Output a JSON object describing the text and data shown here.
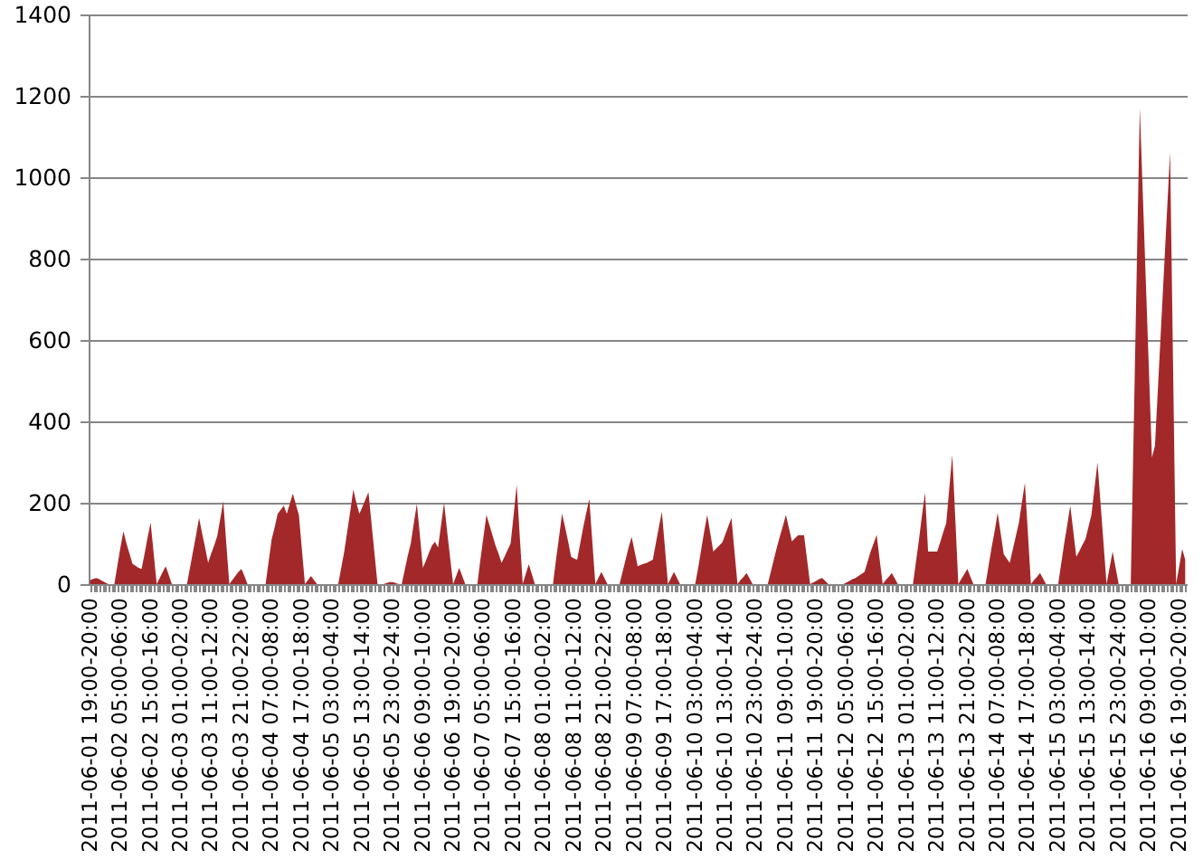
{
  "chart_data": {
    "type": "area",
    "color": "#a3282a",
    "categories": [
      "2011-06-01 19:00-20:00",
      null,
      null,
      null,
      null,
      null,
      null,
      null,
      null,
      null,
      "2011-06-02 05:00-06:00",
      null,
      null,
      null,
      null,
      null,
      null,
      null,
      null,
      null,
      "2011-06-02 15:00-16:00",
      null,
      null,
      null,
      null,
      null,
      null,
      null,
      null,
      null,
      "2011-06-03 01:00-02:00",
      null,
      null,
      null,
      null,
      null,
      null,
      null,
      null,
      null,
      "2011-06-03 11:00-12:00",
      null,
      null,
      null,
      null,
      null,
      null,
      null,
      null,
      null,
      "2011-06-03 21:00-22:00",
      null,
      null,
      null,
      null,
      null,
      null,
      null,
      null,
      null,
      "2011-06-04 07:00-08:00",
      null,
      null,
      null,
      null,
      null,
      null,
      null,
      null,
      null,
      "2011-06-04 17:00-18:00",
      null,
      null,
      null,
      null,
      null,
      null,
      null,
      null,
      null,
      "2011-06-05 03:00-04:00",
      null,
      null,
      null,
      null,
      null,
      null,
      null,
      null,
      null,
      "2011-06-05 13:00-14:00",
      null,
      null,
      null,
      null,
      null,
      null,
      null,
      null,
      null,
      "2011-06-05 23:00-24:00",
      null,
      null,
      null,
      null,
      null,
      null,
      null,
      null,
      null,
      "2011-06-06 09:00-10:00",
      null,
      null,
      null,
      null,
      null,
      null,
      null,
      null,
      null,
      "2011-06-06 19:00-20:00",
      null,
      null,
      null,
      null,
      null,
      null,
      null,
      null,
      null,
      "2011-06-07 05:00-06:00",
      null,
      null,
      null,
      null,
      null,
      null,
      null,
      null,
      null,
      "2011-06-07 15:00-16:00",
      null,
      null,
      null,
      null,
      null,
      null,
      null,
      null,
      null,
      "2011-06-08 01:00-02:00",
      null,
      null,
      null,
      null,
      null,
      null,
      null,
      null,
      null,
      "2011-06-08 11:00-12:00",
      null,
      null,
      null,
      null,
      null,
      null,
      null,
      null,
      null,
      "2011-06-08 21:00-22:00",
      null,
      null,
      null,
      null,
      null,
      null,
      null,
      null,
      null,
      "2011-06-09 07:00-08:00",
      null,
      null,
      null,
      null,
      null,
      null,
      null,
      null,
      null,
      "2011-06-09 17:00-18:00",
      null,
      null,
      null,
      null,
      null,
      null,
      null,
      null,
      null,
      "2011-06-10 03:00-04:00",
      null,
      null,
      null,
      null,
      null,
      null,
      null,
      null,
      null,
      "2011-06-10 13:00-14:00",
      null,
      null,
      null,
      null,
      null,
      null,
      null,
      null,
      null,
      "2011-06-10 23:00-24:00",
      null,
      null,
      null,
      null,
      null,
      null,
      null,
      null,
      null,
      "2011-06-11 09:00-10:00",
      null,
      null,
      null,
      null,
      null,
      null,
      null,
      null,
      null,
      "2011-06-11 19:00-20:00",
      null,
      null,
      null,
      null,
      null,
      null,
      null,
      null,
      null,
      "2011-06-12 05:00-06:00",
      null,
      null,
      null,
      null,
      null,
      null,
      null,
      null,
      null,
      "2011-06-12 15:00-16:00",
      null,
      null,
      null,
      null,
      null,
      null,
      null,
      null,
      null,
      "2011-06-13 01:00-02:00",
      null,
      null,
      null,
      null,
      null,
      null,
      null,
      null,
      null,
      "2011-06-13 11:00-12:00",
      null,
      null,
      null,
      null,
      null,
      null,
      null,
      null,
      null,
      "2011-06-13 21:00-22:00",
      null,
      null,
      null,
      null,
      null,
      null,
      null,
      null,
      null,
      "2011-06-14 07:00-08:00",
      null,
      null,
      null,
      null,
      null,
      null,
      null,
      null,
      null,
      "2011-06-14 17:00-18:00",
      null,
      null,
      null,
      null,
      null,
      null,
      null,
      null,
      null,
      "2011-06-15 03:00-04:00",
      null,
      null,
      null,
      null,
      null,
      null,
      null,
      null,
      null,
      "2011-06-15 13:00-14:00",
      null,
      null,
      null,
      null,
      null,
      null,
      null,
      null,
      null,
      "2011-06-15 23:00-24:00",
      null,
      null,
      null,
      null,
      null,
      null,
      null,
      null,
      null,
      "2011-06-16 09:00-10:00",
      null,
      null,
      null,
      null,
      null,
      null,
      null,
      null,
      null,
      "2011-06-16 19:00-20:00",
      null,
      null
    ],
    "values": [
      10,
      13,
      15,
      12,
      8,
      4,
      0,
      0,
      0,
      45,
      90,
      130,
      100,
      75,
      50,
      45,
      40,
      37,
      75,
      115,
      151,
      75,
      0,
      15,
      30,
      44,
      22,
      0,
      0,
      0,
      0,
      0,
      0,
      40,
      80,
      120,
      163,
      125,
      90,
      52,
      75,
      95,
      118,
      160,
      204,
      100,
      0,
      10,
      20,
      30,
      37,
      20,
      0,
      0,
      0,
      0,
      0,
      0,
      0,
      55,
      110,
      140,
      173,
      183,
      193,
      173,
      198,
      222,
      196,
      170,
      85,
      0,
      10,
      20,
      10,
      0,
      0,
      0,
      0,
      0,
      0,
      0,
      0,
      40,
      80,
      130,
      180,
      232,
      200,
      173,
      190,
      208,
      226,
      150,
      75,
      0,
      0,
      0,
      3,
      5,
      5,
      3,
      0,
      0,
      35,
      70,
      100,
      150,
      197,
      120,
      40,
      58,
      77,
      95,
      104,
      90,
      145,
      200,
      130,
      65,
      0,
      20,
      40,
      20,
      0,
      0,
      0,
      0,
      0,
      60,
      115,
      170,
      145,
      120,
      95,
      75,
      52,
      68,
      84,
      100,
      170,
      244,
      120,
      0,
      25,
      49,
      25,
      0,
      0,
      0,
      0,
      0,
      0,
      0,
      60,
      115,
      173,
      140,
      105,
      67,
      63,
      60,
      100,
      140,
      175,
      210,
      105,
      0,
      15,
      30,
      15,
      0,
      0,
      0,
      0,
      0,
      30,
      60,
      90,
      116,
      80,
      44,
      47,
      50,
      52,
      56,
      60,
      100,
      140,
      178,
      90,
      0,
      15,
      30,
      15,
      0,
      0,
      0,
      0,
      0,
      0,
      40,
      85,
      130,
      170,
      125,
      80,
      88,
      95,
      103,
      123,
      143,
      163,
      80,
      0,
      10,
      18,
      27,
      14,
      0,
      0,
      0,
      0,
      0,
      0,
      30,
      60,
      90,
      117,
      143,
      170,
      138,
      105,
      113,
      120,
      120,
      120,
      60,
      0,
      4,
      8,
      12,
      15,
      8,
      0,
      0,
      0,
      0,
      0,
      0,
      4,
      8,
      12,
      15,
      20,
      25,
      30,
      55,
      80,
      100,
      121,
      60,
      0,
      10,
      18,
      27,
      14,
      0,
      0,
      0,
      0,
      0,
      0,
      55,
      110,
      170,
      225,
      80,
      80,
      80,
      80,
      103,
      127,
      150,
      234,
      318,
      160,
      0,
      13,
      25,
      37,
      18,
      0,
      0,
      0,
      0,
      0,
      45,
      90,
      130,
      175,
      125,
      74,
      63,
      52,
      85,
      118,
      150,
      200,
      249,
      125,
      0,
      10,
      18,
      27,
      14,
      0,
      0,
      0,
      0,
      0,
      50,
      100,
      145,
      193,
      130,
      67,
      81,
      96,
      110,
      140,
      170,
      235,
      299,
      200,
      100,
      0,
      40,
      80,
      40,
      0,
      0,
      0,
      0,
      0,
      390,
      780,
      1170,
      955,
      740,
      525,
      311,
      340,
      484,
      629,
      773,
      918,
      1062,
      530,
      0,
      43,
      86,
      60
    ],
    "ylim": [
      0,
      1400
    ],
    "yticks": [
      0,
      200,
      400,
      600,
      800,
      1000,
      1200,
      1400
    ],
    "grid": "y"
  }
}
